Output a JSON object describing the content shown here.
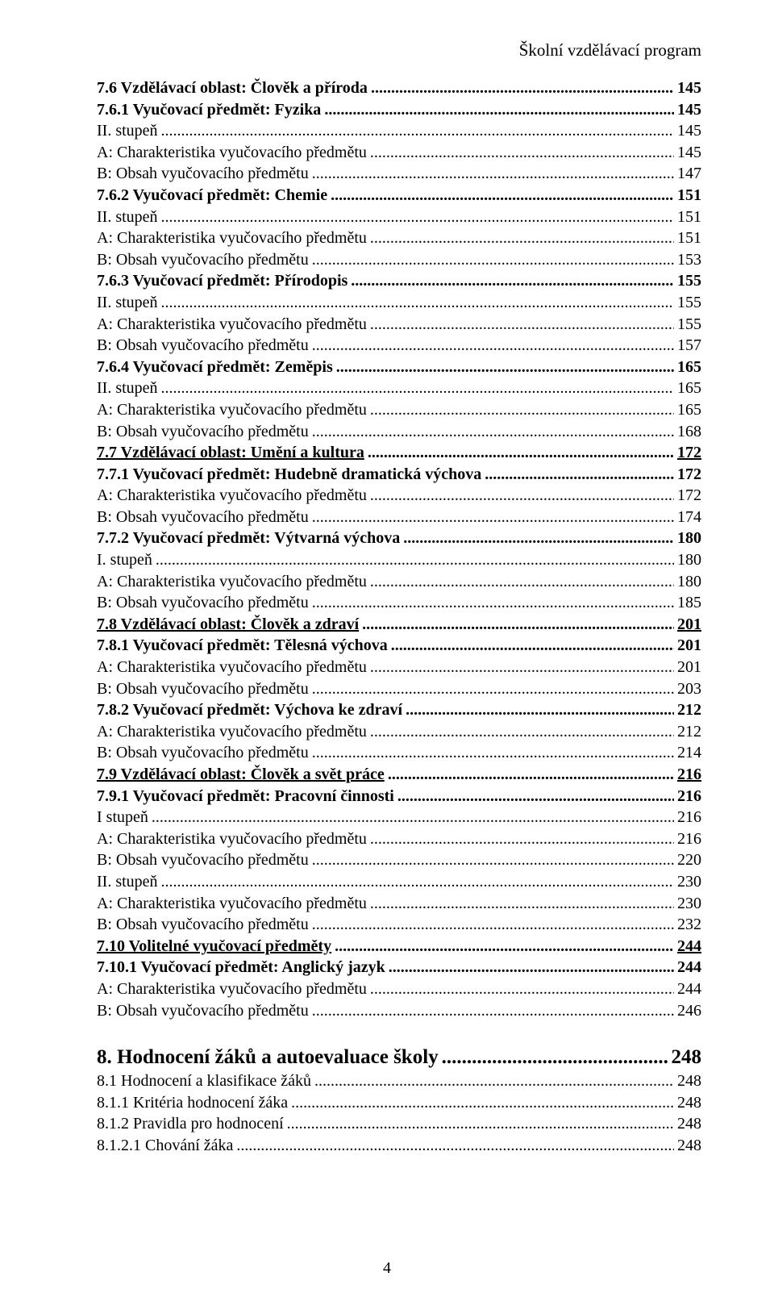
{
  "header": {
    "title": "Školní vzdělávací program"
  },
  "footer": {
    "page_number": "4"
  },
  "toc": [
    {
      "label": "7.6 Vzdělávací oblast: Člověk a příroda",
      "page": "145",
      "bold": true
    },
    {
      "label": "7.6.1 Vyučovací předmět: Fyzika",
      "page": "145",
      "bold": true
    },
    {
      "label": "II. stupeň",
      "page": "145"
    },
    {
      "label": "A: Charakteristika vyučovacího předmětu",
      "page": "145"
    },
    {
      "label": "B: Obsah vyučovacího předmětu",
      "page": "147"
    },
    {
      "label": "7.6.2 Vyučovací předmět: Chemie",
      "page": "151",
      "bold": true
    },
    {
      "label": "II. stupeň",
      "page": "151"
    },
    {
      "label": "A: Charakteristika vyučovacího předmětu",
      "page": "151"
    },
    {
      "label": "B: Obsah vyučovacího předmětu",
      "page": "153"
    },
    {
      "label": "7.6.3 Vyučovací předmět: Přírodopis",
      "page": "155",
      "bold": true
    },
    {
      "label": "II. stupeň",
      "page": "155"
    },
    {
      "label": "A: Charakteristika vyučovacího předmětu",
      "page": "155"
    },
    {
      "label": "B: Obsah vyučovacího předmětu",
      "page": "157"
    },
    {
      "label": "7.6.4 Vyučovací předmět: Zeměpis",
      "page": "165",
      "bold": true
    },
    {
      "label": "II. stupeň",
      "page": "165"
    },
    {
      "label": "A: Charakteristika vyučovacího předmětu",
      "page": "165"
    },
    {
      "label": "B: Obsah vyučovacího předmětu",
      "page": "168"
    },
    {
      "label": "7.7 Vzdělávací oblast: Umění a kultura",
      "page": "172",
      "bold": true,
      "ul": true
    },
    {
      "label": "7.7.1 Vyučovací předmět: Hudebně dramatická výchova",
      "page": "172",
      "bold": true
    },
    {
      "label": "A: Charakteristika vyučovacího předmětu",
      "page": "172"
    },
    {
      "label": "B: Obsah vyučovacího předmětu",
      "page": "174"
    },
    {
      "label": "7.7.2 Vyučovací předmět: Výtvarná výchova",
      "page": "180",
      "bold": true
    },
    {
      "label": "I. stupeň",
      "page": "180"
    },
    {
      "label": "A: Charakteristika vyučovacího předmětu",
      "page": "180"
    },
    {
      "label": "B: Obsah vyučovacího předmětu",
      "page": "185"
    },
    {
      "label": "7.8 Vzdělávací oblast: Člověk a zdraví",
      "page": "201",
      "bold": true,
      "ul": true
    },
    {
      "label": "7.8.1 Vyučovací předmět: Tělesná výchova",
      "page": "201",
      "bold": true
    },
    {
      "label": "A: Charakteristika vyučovacího předmětu",
      "page": "201"
    },
    {
      "label": "B: Obsah vyučovacího předmětu",
      "page": "203"
    },
    {
      "label": "7.8.2 Vyučovací předmět: Výchova ke zdraví",
      "page": "212",
      "bold": true
    },
    {
      "label": "A: Charakteristika vyučovacího předmětu",
      "page": "212"
    },
    {
      "label": "B: Obsah vyučovacího předmětu",
      "page": "214"
    },
    {
      "label": "7.9 Vzdělávací oblast: Člověk a svět práce",
      "page": "216",
      "bold": true,
      "ul": true
    },
    {
      "label": "7.9.1 Vyučovací předmět: Pracovní činnosti",
      "page": "216",
      "bold": true
    },
    {
      "label": "I stupeň",
      "page": "216"
    },
    {
      "label": "A: Charakteristika vyučovacího předmětu",
      "page": "216"
    },
    {
      "label": "B: Obsah vyučovacího předmětu",
      "page": "220"
    },
    {
      "label": "II. stupeň",
      "page": "230"
    },
    {
      "label": "A: Charakteristika vyučovacího předmětu",
      "page": "230"
    },
    {
      "label": "B: Obsah vyučovacího předmětu",
      "page": "232"
    },
    {
      "label": "7.10 Volitelné vyučovací předměty",
      "page": "244",
      "bold": true,
      "ul": true
    },
    {
      "label": "7.10.1 Vyučovací předmět: Anglický jazyk",
      "page": "244",
      "bold": true
    },
    {
      "label": "A: Charakteristika vyučovacího předmětu",
      "page": "244"
    },
    {
      "label": "B: Obsah vyučovacího předmětu",
      "page": "246"
    }
  ],
  "spacer_after_index": 43,
  "section8": {
    "label": "8. Hodnocení žáků a autoevaluace školy",
    "page": "248"
  },
  "toc2": [
    {
      "label": "8.1 Hodnocení a klasifikace žáků",
      "page": "248"
    },
    {
      "label": "8.1.1 Kritéria hodnocení žáka",
      "page": "248"
    },
    {
      "label": "8.1.2 Pravidla pro hodnocení",
      "page": "248"
    },
    {
      "label": "8.1.2.1 Chování žáka",
      "page": "248"
    }
  ]
}
